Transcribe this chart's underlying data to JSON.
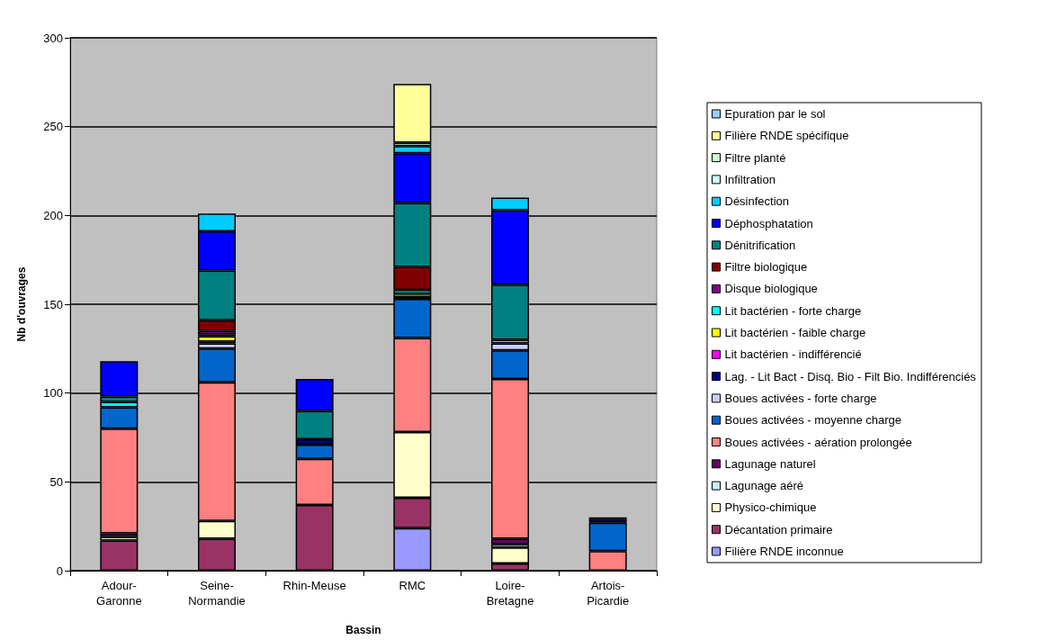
{
  "chart_data": {
    "type": "bar",
    "stacked": true,
    "xlabel": "Bassin",
    "ylabel": "Nb d'ouvrages",
    "categories": [
      "Adour-Garonne",
      "Seine-Normandie",
      "Rhin-Meuse",
      "RMC",
      "Loire-Bretagne",
      "Artois-Picardie"
    ],
    "ylim": [
      0,
      300
    ],
    "yticks": [
      0,
      50,
      100,
      150,
      200,
      250,
      300
    ],
    "grid": "y",
    "legend": "right",
    "series": [
      {
        "name": "Filière RNDE inconnue",
        "color": "#9999ff",
        "values": [
          0,
          0,
          0,
          24,
          0,
          0
        ]
      },
      {
        "name": "Décantation primaire",
        "color": "#993366",
        "values": [
          17,
          18,
          37,
          17,
          4,
          null
        ]
      },
      {
        "name": "Physico-chimique",
        "color": "#ffffcc",
        "values": [
          2,
          10,
          0,
          37,
          9,
          0
        ]
      },
      {
        "name": "Lagunage aéré",
        "color": "#ccecff",
        "values": [
          0,
          0,
          0,
          0,
          2,
          0
        ]
      },
      {
        "name": "Lagunage naturel",
        "color": "#660066",
        "values": [
          2,
          0,
          0,
          0,
          3,
          0
        ]
      },
      {
        "name": "Boues activées - aération prolongée",
        "color": "#ff8080",
        "values": [
          59,
          78,
          26,
          53,
          90,
          11
        ]
      },
      {
        "name": "Boues activées - moyenne charge",
        "color": "#0066cc",
        "values": [
          12,
          19,
          8,
          22,
          16,
          16
        ]
      },
      {
        "name": "Boues activées - forte charge",
        "color": "#ccccff",
        "values": [
          0,
          3,
          0,
          0,
          4,
          0
        ]
      },
      {
        "name": "Lag. - Lit Bact - Disq. Bio - Filt Bio. Indifférenciés",
        "color": "#000080",
        "values": [
          0,
          0,
          3,
          1,
          0,
          2
        ]
      },
      {
        "name": "Lit bactérien - indifférencié",
        "color": "#ff00ff",
        "values": [
          0,
          1,
          0,
          0,
          0,
          1
        ]
      },
      {
        "name": "Lit bactérien - faible charge",
        "color": "#ffff00",
        "values": [
          0,
          3,
          0,
          2,
          0,
          0
        ]
      },
      {
        "name": "Lit bactérien - forte charge",
        "color": "#00ffff",
        "values": [
          3,
          1,
          0,
          2,
          2,
          0
        ]
      },
      {
        "name": "Disque biologique",
        "color": "#800080",
        "values": [
          0,
          2,
          0,
          0,
          0,
          0
        ]
      },
      {
        "name": "Filtre biologique",
        "color": "#800000",
        "values": [
          0,
          6,
          0,
          13,
          0,
          0
        ]
      },
      {
        "name": "Dénitrification",
        "color": "#008080",
        "values": [
          3,
          28,
          16,
          36,
          31,
          0
        ]
      },
      {
        "name": "Déphosphatation",
        "color": "#0000ff",
        "values": [
          20,
          22,
          18,
          28,
          42,
          0
        ]
      },
      {
        "name": "Désinfection",
        "color": "#00ccff",
        "values": [
          0,
          10,
          0,
          4,
          7,
          0
        ]
      },
      {
        "name": "Infiltration",
        "color": "#ccffff",
        "values": [
          0,
          0,
          0,
          2,
          0,
          0
        ]
      },
      {
        "name": "Filtre planté",
        "color": "#ccffcc",
        "values": [
          0,
          0,
          0,
          0,
          0,
          0
        ]
      },
      {
        "name": "Filière RNDE spécifique",
        "color": "#ffff99",
        "values": [
          0,
          0,
          0,
          33,
          0,
          0
        ]
      },
      {
        "name": "Epuration par le sol",
        "color": "#99ccff",
        "values": [
          0,
          0,
          0,
          0,
          0,
          0
        ]
      }
    ]
  }
}
